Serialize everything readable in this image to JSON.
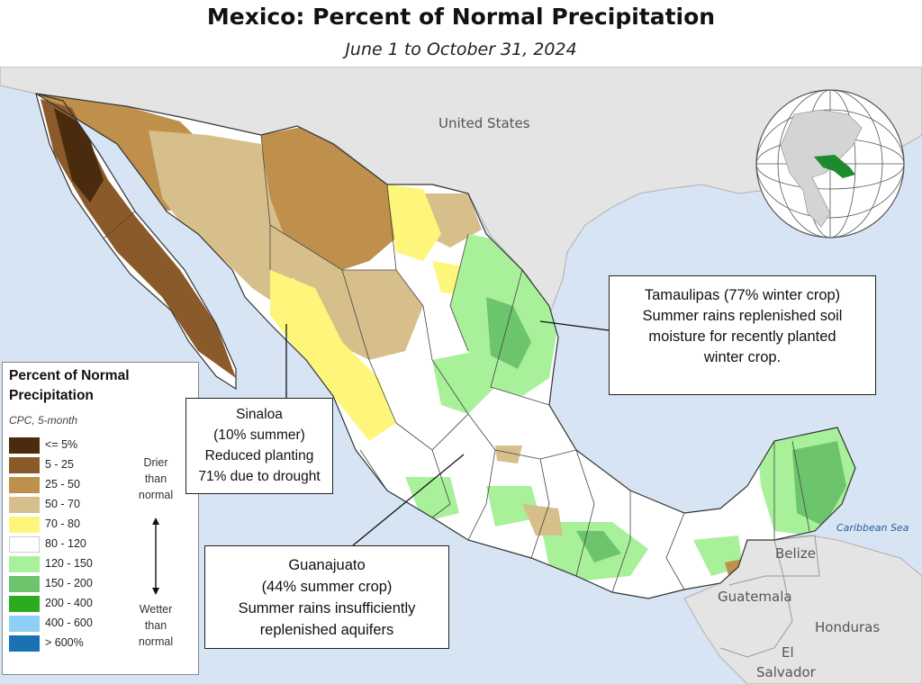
{
  "title": "Mexico: Percent of Normal Precipitation",
  "subtitle": "June 1 to October 31, 2024",
  "map_labels": {
    "united_states": "United States",
    "belize": "Belize",
    "guatemala": "Guatemala",
    "honduras": "Honduras",
    "el_salvador_1": "El",
    "el_salvador_2": "Salvador",
    "caribbean_sea": "Caribbean Sea"
  },
  "legend": {
    "title": "Percent of Normal Precipitation",
    "subtitle": "CPC, 5-month",
    "items": [
      {
        "label": "<= 5%",
        "color": "#4a2b0d"
      },
      {
        "label": "5 - 25",
        "color": "#8b5a2b"
      },
      {
        "label": "25 - 50",
        "color": "#bf8f4c"
      },
      {
        "label": "50 - 70",
        "color": "#d6bf8a"
      },
      {
        "label": "70 - 80",
        "color": "#fdf67a"
      },
      {
        "label": "80 - 120",
        "color": "#ffffff"
      },
      {
        "label": "120 - 150",
        "color": "#a8f09a"
      },
      {
        "label": "150 - 200",
        "color": "#6cc46c"
      },
      {
        "label": "200 - 400",
        "color": "#2eaa1e"
      },
      {
        "label": "400 - 600",
        "color": "#8fcff5"
      },
      {
        "label": "> 600%",
        "color": "#1a72b5"
      }
    ],
    "drier": [
      "Drier",
      "than",
      "normal"
    ],
    "wetter": [
      "Wetter",
      "than",
      "normal"
    ]
  },
  "callouts": {
    "tamaulipas": [
      "Tamaulipas (77% winter crop)",
      "Summer rains replenished soil",
      "moisture for recently planted",
      "winter crop."
    ],
    "sinaloa": [
      "Sinaloa",
      "(10% summer)",
      "Reduced planting",
      "71% due to drought"
    ],
    "guanajuato": [
      "Guanajuato",
      "(44% summer crop)",
      "Summer rains insufficiently",
      "replenished aquifers"
    ]
  }
}
